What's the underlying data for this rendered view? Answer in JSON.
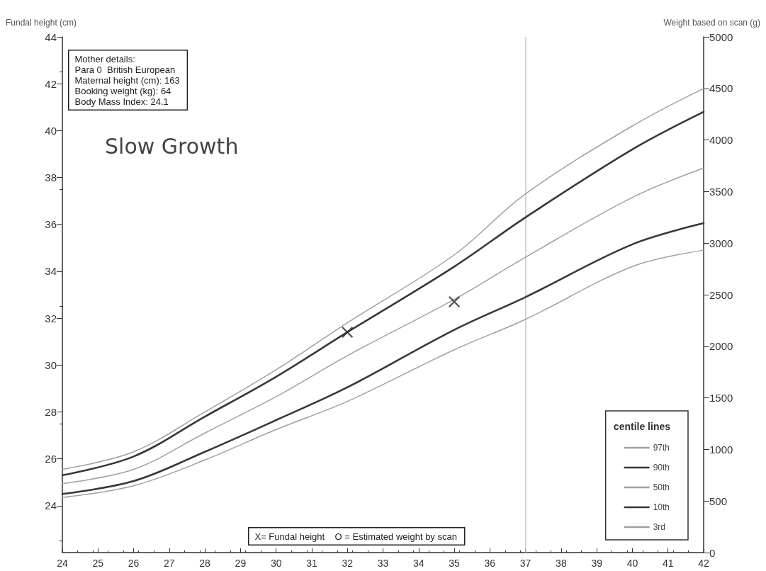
{
  "chart_data": {
    "type": "line",
    "ylabel": "Fundal height (cm)",
    "y2label": "Weight based on scan (g)",
    "legend_title": "centile lines",
    "legend": "bottom right",
    "grid": false,
    "marker": "none",
    "line_style": "solid",
    "xlim": [
      24,
      42
    ],
    "xticks": [
      24,
      25,
      26,
      27,
      28,
      29,
      30,
      31,
      32,
      33,
      34,
      35,
      36,
      37,
      38,
      39,
      40,
      41,
      42
    ],
    "ylim": [
      22,
      44
    ],
    "yticks": [
      24,
      26,
      28,
      30,
      32,
      34,
      36,
      38,
      40,
      42,
      44
    ],
    "y2lim": [
      0,
      5000
    ],
    "y2ticks": [
      0,
      500,
      1000,
      1500,
      2000,
      2500,
      3000,
      3500,
      4000,
      4500,
      5000
    ],
    "x": [
      24,
      26,
      28,
      30,
      32,
      35,
      37,
      40,
      42
    ],
    "series": [
      {
        "name": "97th",
        "color": "#a0a0a0",
        "values": [
          25.55,
          26.3,
          28.0,
          29.8,
          31.8,
          34.7,
          37.3,
          40.2,
          41.8
        ]
      },
      {
        "name": "90th",
        "color": "#383838",
        "values": [
          25.3,
          26.1,
          27.8,
          29.5,
          31.4,
          34.2,
          36.3,
          39.2,
          40.8
        ]
      },
      {
        "name": "50th",
        "color": "#a0a0a0",
        "values": [
          24.95,
          25.55,
          27.1,
          28.65,
          30.4,
          32.8,
          34.6,
          37.15,
          38.4
        ]
      },
      {
        "name": "10th",
        "color": "#383838",
        "values": [
          24.5,
          25.05,
          26.3,
          27.65,
          29.05,
          31.5,
          32.9,
          35.15,
          36.05
        ]
      },
      {
        "name": "3rd",
        "color": "#a0a0a0",
        "values": [
          24.35,
          24.85,
          25.95,
          27.25,
          28.45,
          30.65,
          31.95,
          34.2,
          34.9
        ]
      },
      {
        "type": "scatter",
        "marker": "cross",
        "color": "#2a2a2a",
        "x": [
          32,
          35
        ],
        "values": [
          31.4,
          32.7
        ]
      }
    ],
    "ref_lines": [
      {
        "axis": "x",
        "value": 37,
        "color": "#c8c8c8"
      }
    ],
    "annotations": [
      "Mother details:\nPara 0  British European\nMaternal height (cm): 163\nBooking weight (kg): 64\nBody Mass Index: 24.1",
      "Slow Growth",
      "X= Fundal height    O = Estimated weight by scan"
    ]
  }
}
